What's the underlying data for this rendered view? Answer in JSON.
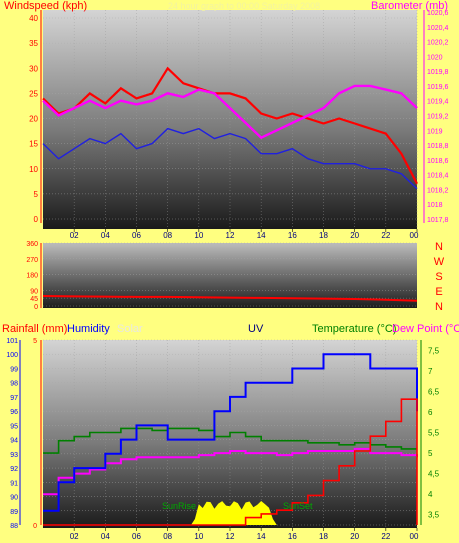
{
  "colors": {
    "background": "#ffff80",
    "windspeed": "#ff0000",
    "gust_avg": "#2020e0",
    "barometer": "#ff00ff",
    "direction": "#ff0000",
    "rainfall": "#ff0000",
    "humidity": "#0000ff",
    "solar": "#ffff00",
    "temperature": "#008000",
    "dewpoint": "#ff00ff",
    "uv_label": "#000080",
    "direction_axis": "#ff0000"
  },
  "header": {
    "windspeed_label": "Windspeed (kph)",
    "barometer_label": "Barometer (mb)",
    "faint_title": "24 hour graph to 00:00 Saturday 2008"
  },
  "x_ticks": [
    "02",
    "04",
    "06",
    "08",
    "10",
    "12",
    "14",
    "16",
    "18",
    "20",
    "22",
    "00"
  ],
  "chart_data": [
    {
      "type": "line",
      "title": "",
      "xlabel": "",
      "ylabel": "Windspeed (kph)",
      "y2label": "Barometer (mb)",
      "ylim": [
        0,
        40
      ],
      "y2lim": [
        1017.8,
        1020.6
      ],
      "yticks": [
        "0",
        "5",
        "10",
        "15",
        "20",
        "25",
        "30",
        "35",
        "40"
      ],
      "y2ticks": [
        "1017,8",
        "1018",
        "1018,2",
        "1018,4",
        "1018,6",
        "1018,8",
        "1019",
        "1019,2",
        "1019,4",
        "1019,6",
        "1019,8",
        "1020",
        "1020,2",
        "1020,4",
        "1020,6"
      ],
      "x": [
        0,
        1,
        2,
        3,
        4,
        5,
        6,
        7,
        8,
        9,
        10,
        11,
        12,
        13,
        14,
        15,
        16,
        17,
        18,
        19,
        20,
        21,
        22,
        23,
        24
      ],
      "series": [
        {
          "name": "Windspeed (kph)",
          "axis": "left",
          "values": [
            24,
            21,
            22,
            25,
            23,
            26,
            24,
            25,
            30,
            27,
            26,
            25,
            25,
            24,
            21,
            20,
            21,
            20,
            19,
            20,
            19,
            18,
            17,
            13,
            7
          ]
        },
        {
          "name": "",
          "axis": "left",
          "values": [
            15,
            12,
            14,
            16,
            15,
            17,
            14,
            15,
            18,
            17,
            18,
            16,
            17,
            16,
            13,
            13,
            14,
            12,
            11,
            11,
            11,
            10,
            10,
            9,
            6
          ]
        },
        {
          "name": "Barometer (mb)",
          "axis": "right",
          "values": [
            1019.4,
            1019.2,
            1019.3,
            1019.4,
            1019.3,
            1019.4,
            1019.35,
            1019.4,
            1019.5,
            1019.45,
            1019.55,
            1019.5,
            1019.3,
            1019.1,
            1018.9,
            1019.0,
            1019.1,
            1019.2,
            1019.3,
            1019.5,
            1019.6,
            1019.6,
            1019.55,
            1019.5,
            1019.3
          ]
        }
      ]
    },
    {
      "type": "line",
      "title": "",
      "ylim": [
        0,
        360
      ],
      "yticks": [
        "0",
        "45",
        "90",
        "180",
        "270",
        "360"
      ],
      "direction_labels": [
        "N",
        "W",
        "S",
        "E",
        "N"
      ],
      "x": [
        0,
        2,
        4,
        6,
        8,
        10,
        12,
        14,
        16,
        18,
        20,
        22,
        24
      ],
      "series": [
        {
          "name": "",
          "values": [
            57,
            55,
            54,
            52,
            52,
            50,
            48,
            46,
            44,
            42,
            40,
            36,
            30
          ]
        }
      ]
    },
    {
      "type": "line",
      "title": "",
      "labels": {
        "rainfall": "Rainfall (mm)",
        "humidity": "Humidity",
        "solar": "Solar",
        "uv": "UV",
        "temperature": "Temperature (°C)",
        "dewpoint": "Dew Point (°C"
      },
      "ylim": [
        88,
        101
      ],
      "yticks": [
        "88",
        "89",
        "90",
        "91",
        "92",
        "93",
        "94",
        "95",
        "96",
        "97",
        "98",
        "99",
        "100",
        "101"
      ],
      "rain_ticks": [
        "0",
        "5"
      ],
      "y2lim": [
        3.25,
        7.75
      ],
      "y2ticks": [
        "3,5",
        "4",
        "4,5",
        "5",
        "5,5",
        "6",
        "6,5",
        "7",
        "7,5"
      ],
      "annotations": [
        "SunRise",
        "SunSet"
      ],
      "x": [
        0,
        1,
        2,
        3,
        4,
        5,
        6,
        7,
        8,
        9,
        10,
        11,
        12,
        13,
        14,
        15,
        16,
        17,
        18,
        19,
        20,
        21,
        22,
        23,
        24
      ],
      "series": [
        {
          "name": "Humidity",
          "axis": "left",
          "values": [
            89,
            91,
            92,
            92,
            93,
            94,
            95,
            95,
            94,
            94,
            94,
            96,
            97,
            98,
            98,
            98,
            99,
            99,
            100,
            100,
            100,
            99,
            99,
            99,
            96
          ]
        },
        {
          "name": "Temperature (°C)",
          "axis": "right",
          "values": [
            5.0,
            5.3,
            5.4,
            5.5,
            5.5,
            5.6,
            5.6,
            5.55,
            5.6,
            5.6,
            5.55,
            5.4,
            5.5,
            5.4,
            5.3,
            5.3,
            5.3,
            5.25,
            5.25,
            5.2,
            5.25,
            5.2,
            5.15,
            5.1,
            5.1
          ]
        },
        {
          "name": "Dew Point (°C",
          "axis": "right",
          "values": [
            4.0,
            4.4,
            4.5,
            4.6,
            4.75,
            4.85,
            4.9,
            4.9,
            4.9,
            4.9,
            4.95,
            5.0,
            5.05,
            5.0,
            5.0,
            4.95,
            5.0,
            5.05,
            5.05,
            5.05,
            5.1,
            5.0,
            5.0,
            4.95,
            4.9
          ]
        },
        {
          "name": "Rainfall (mm)",
          "axis": "rain",
          "values": [
            0,
            0,
            0,
            0,
            0,
            0,
            0,
            0,
            0,
            0,
            0,
            0,
            0,
            0.2,
            0.3,
            0.4,
            0.6,
            0.8,
            1.2,
            1.6,
            2.0,
            2.4,
            2.8,
            3.4,
            0
          ]
        },
        {
          "name": "Solar",
          "axis": "solar",
          "values": [
            0,
            0,
            0,
            0,
            0,
            0,
            0,
            0,
            0,
            0,
            0.4,
            0.8,
            0.7,
            0.9,
            0.6,
            0,
            0,
            0,
            0,
            0,
            0,
            0,
            0,
            0,
            0
          ]
        }
      ]
    }
  ]
}
